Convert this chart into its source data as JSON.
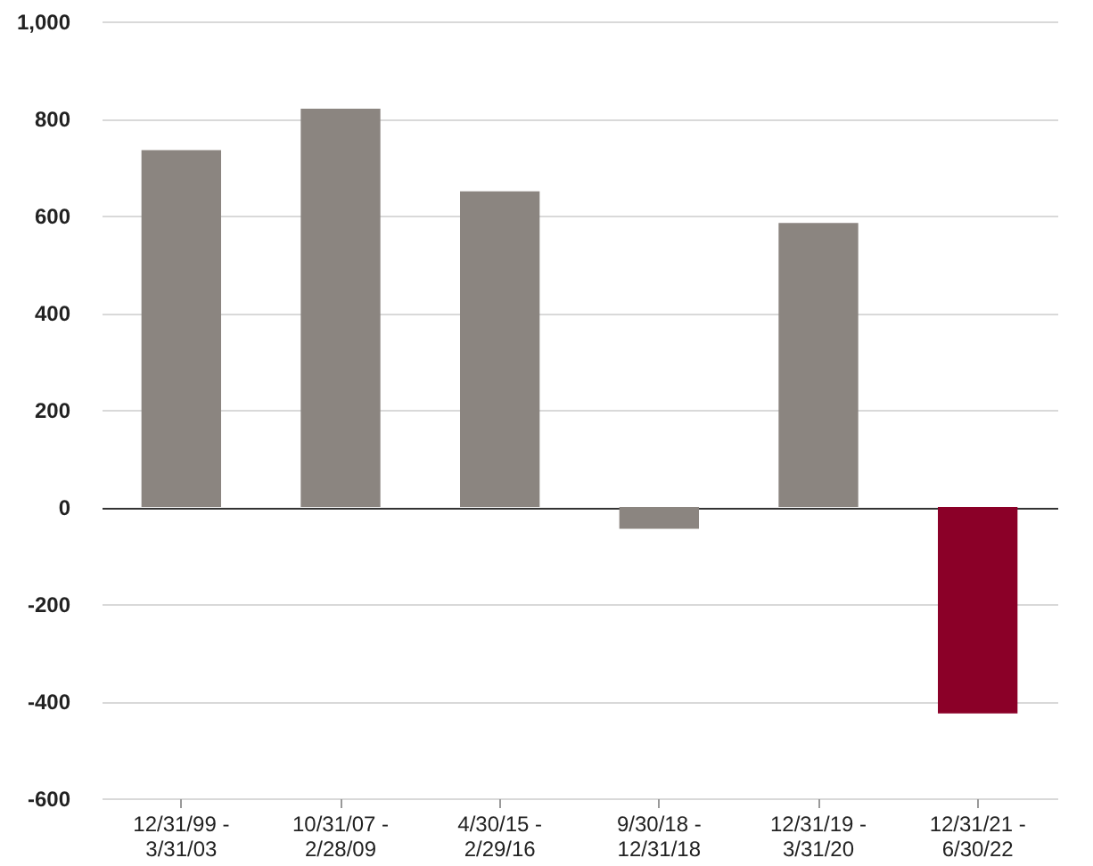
{
  "chart_data": {
    "type": "bar",
    "categories": [
      "12/31/99 -\n3/31/03",
      "10/31/07 -\n2/28/09",
      "4/30/15 -\n2/29/16",
      "9/30/18 -\n12/31/18",
      "12/31/19 -\n3/31/20",
      "12/31/21 -\n6/30/22"
    ],
    "values": [
      735,
      820,
      650,
      -45,
      585,
      -425
    ],
    "colors": [
      "#8b8580",
      "#8b8580",
      "#8b8580",
      "#8b8580",
      "#8b8580",
      "#8b0028"
    ],
    "ylim": [
      -600,
      1000
    ],
    "yticks": [
      -600,
      -400,
      -200,
      0,
      200,
      400,
      600,
      800,
      {
        "value": 1000,
        "label": "1,000"
      }
    ],
    "grid": "y",
    "legend": false
  }
}
